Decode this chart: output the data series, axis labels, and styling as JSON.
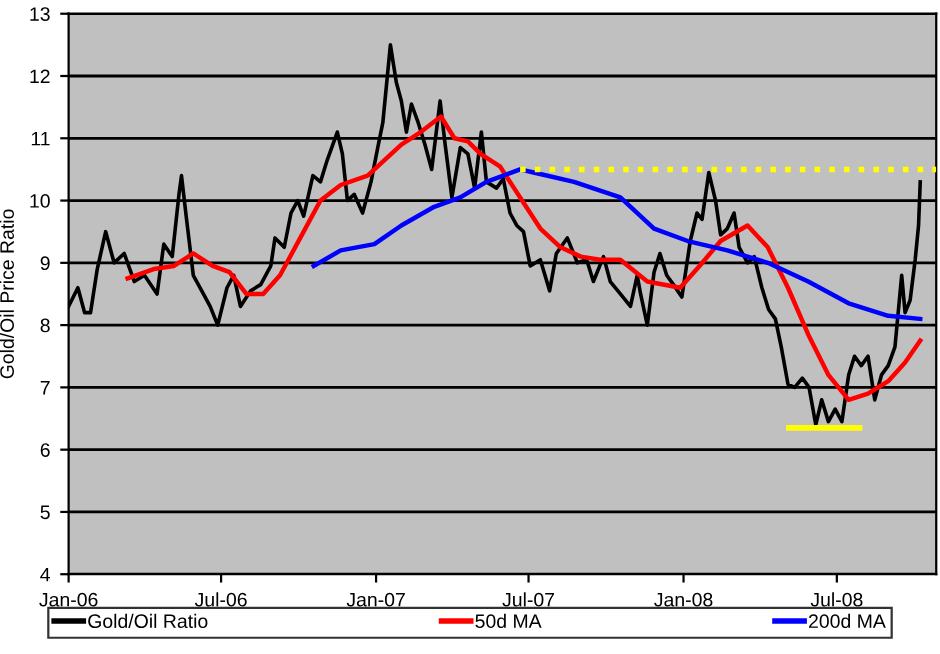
{
  "chart_data": {
    "type": "line",
    "ylabel": "Gold/Oil Price Ratio",
    "xlim": [
      "2006-01-01",
      "2008-10-27"
    ],
    "xticks": [
      {
        "value": "2006-01-01",
        "label": "Jan-06"
      },
      {
        "value": "2006-07-01",
        "label": "Jul-06"
      },
      {
        "value": "2007-01-01",
        "label": "Jan-07"
      },
      {
        "value": "2007-07-01",
        "label": "Jul-07"
      },
      {
        "value": "2008-01-01",
        "label": "Jan-08"
      },
      {
        "value": "2008-07-01",
        "label": "Jul-08"
      }
    ],
    "ylim": [
      4,
      13
    ],
    "yticks": [
      4,
      5,
      6,
      7,
      8,
      9,
      10,
      11,
      12,
      13
    ],
    "grid": "y",
    "legend": "bottom",
    "marker": "none",
    "line_style": "solid",
    "series": [
      {
        "name": "Gold/Oil Ratio",
        "color": "#000000",
        "x": [
          "2006-01-01",
          "2006-01-12",
          "2006-01-20",
          "2006-01-27",
          "2006-02-04",
          "2006-02-14",
          "2006-02-24",
          "2006-03-08",
          "2006-03-20",
          "2006-04-01",
          "2006-04-16",
          "2006-04-24",
          "2006-05-04",
          "2006-05-12",
          "2006-05-15",
          "2006-05-21",
          "2006-05-29",
          "2006-06-10",
          "2006-06-18",
          "2006-06-27",
          "2006-07-08",
          "2006-07-16",
          "2006-07-24",
          "2006-08-05",
          "2006-08-17",
          "2006-08-29",
          "2006-09-03",
          "2006-09-14",
          "2006-09-22",
          "2006-09-30",
          "2006-10-07",
          "2006-10-18",
          "2006-10-27",
          "2006-11-04",
          "2006-11-16",
          "2006-11-22",
          "2006-11-28",
          "2006-12-06",
          "2006-12-16",
          "2006-12-26",
          "2007-01-03",
          "2007-01-09",
          "2007-01-18",
          "2007-01-25",
          "2007-01-31",
          "2007-02-06",
          "2007-02-12",
          "2007-02-20",
          "2007-02-28",
          "2007-03-08",
          "2007-03-18",
          "2007-03-24",
          "2007-04-01",
          "2007-04-11",
          "2007-04-20",
          "2007-04-28",
          "2007-05-06",
          "2007-05-12",
          "2007-05-24",
          "2007-06-01",
          "2007-06-09",
          "2007-06-17",
          "2007-06-25",
          "2007-07-03",
          "2007-07-15",
          "2007-07-26",
          "2007-08-03",
          "2007-08-16",
          "2007-08-28",
          "2007-09-08",
          "2007-09-16",
          "2007-09-28",
          "2007-10-06",
          "2007-10-18",
          "2007-10-30",
          "2007-11-07",
          "2007-11-11",
          "2007-11-19",
          "2007-11-27",
          "2007-12-04",
          "2007-12-12",
          "2007-12-20",
          "2007-12-30",
          "2008-01-09",
          "2008-01-17",
          "2008-01-23",
          "2008-01-31",
          "2008-02-08",
          "2008-02-14",
          "2008-02-22",
          "2008-03-01",
          "2008-03-07",
          "2008-03-17",
          "2008-03-25",
          "2008-04-03",
          "2008-04-11",
          "2008-04-19",
          "2008-04-26",
          "2008-05-04",
          "2008-05-12",
          "2008-05-21",
          "2008-05-29",
          "2008-06-06",
          "2008-06-13",
          "2008-06-21",
          "2008-06-29",
          "2008-07-07",
          "2008-07-15",
          "2008-07-22",
          "2008-07-30",
          "2008-08-07",
          "2008-08-15",
          "2008-08-23",
          "2008-08-31",
          "2008-09-08",
          "2008-09-16",
          "2008-09-20",
          "2008-09-26",
          "2008-10-02",
          "2008-10-06",
          "2008-10-08"
        ],
        "values": [
          8.3,
          8.6,
          8.2,
          8.2,
          8.9,
          9.5,
          9.0,
          9.15,
          8.7,
          8.8,
          8.5,
          9.3,
          9.1,
          10.1,
          10.4,
          9.7,
          8.8,
          8.5,
          8.3,
          8.0,
          8.6,
          8.8,
          8.3,
          8.55,
          8.65,
          8.95,
          9.4,
          9.25,
          9.8,
          10.0,
          9.75,
          10.4,
          10.3,
          10.65,
          11.1,
          10.75,
          10.0,
          10.1,
          9.8,
          10.3,
          10.85,
          11.25,
          12.5,
          11.9,
          11.6,
          11.1,
          11.55,
          11.25,
          10.9,
          10.5,
          11.6,
          10.9,
          10.05,
          10.85,
          10.75,
          10.2,
          11.1,
          10.3,
          10.2,
          10.35,
          9.8,
          9.6,
          9.5,
          8.95,
          9.05,
          8.55,
          9.15,
          9.4,
          9.0,
          9.05,
          8.7,
          9.1,
          8.7,
          8.5,
          8.3,
          8.8,
          8.5,
          8.0,
          8.85,
          9.15,
          8.8,
          8.65,
          8.45,
          9.35,
          9.8,
          9.7,
          10.45,
          10.0,
          9.45,
          9.55,
          9.8,
          9.25,
          9.0,
          9.1,
          8.6,
          8.25,
          8.1,
          7.65,
          7.05,
          7.0,
          7.15,
          7.0,
          6.4,
          6.8,
          6.45,
          6.65,
          6.45,
          7.2,
          7.5,
          7.35,
          7.5,
          6.8,
          7.2,
          7.35,
          7.65,
          8.8,
          8.2,
          8.4,
          9.05,
          9.6,
          10.3
        ]
      },
      {
        "name": "50d MA",
        "color": "#ff0000",
        "x": [
          "2006-03-12",
          "2006-04-12",
          "2006-05-06",
          "2006-05-29",
          "2006-06-21",
          "2006-07-11",
          "2006-07-31",
          "2006-08-20",
          "2006-09-09",
          "2006-10-03",
          "2006-10-27",
          "2006-11-20",
          "2006-12-22",
          "2007-01-11",
          "2007-01-31",
          "2007-02-23",
          "2007-03-19",
          "2007-04-04",
          "2007-04-20",
          "2007-05-05",
          "2007-05-28",
          "2007-06-21",
          "2007-07-15",
          "2007-08-08",
          "2007-09-01",
          "2007-09-24",
          "2007-10-18",
          "2007-11-19",
          "2007-12-28",
          "2008-01-20",
          "2008-02-14",
          "2008-03-17",
          "2008-04-10",
          "2008-05-04",
          "2008-05-28",
          "2008-06-21",
          "2008-07-15",
          "2008-08-07",
          "2008-08-31",
          "2008-09-20",
          "2008-10-08"
        ],
        "values": [
          8.75,
          8.9,
          8.95,
          9.15,
          8.95,
          8.85,
          8.5,
          8.5,
          8.8,
          9.4,
          10.0,
          10.25,
          10.4,
          10.65,
          10.9,
          11.1,
          11.35,
          11.0,
          10.95,
          10.75,
          10.55,
          10.05,
          9.55,
          9.25,
          9.1,
          9.05,
          9.05,
          8.7,
          8.6,
          8.95,
          9.35,
          9.6,
          9.25,
          8.6,
          7.85,
          7.2,
          6.8,
          6.9,
          7.1,
          7.4,
          7.75
        ]
      },
      {
        "name": "200d MA",
        "color": "#0000ff",
        "x": [
          "2006-10-19",
          "2006-11-20",
          "2006-12-30",
          "2007-01-31",
          "2007-03-11",
          "2007-04-11",
          "2007-05-12",
          "2007-06-21",
          "2007-07-07",
          "2007-08-24",
          "2007-10-18",
          "2007-11-27",
          "2008-01-06",
          "2008-02-22",
          "2008-04-10",
          "2008-05-28",
          "2008-07-15",
          "2008-08-31",
          "2008-10-08"
        ],
        "values": [
          8.95,
          9.2,
          9.3,
          9.6,
          9.9,
          10.05,
          10.3,
          10.5,
          10.45,
          10.3,
          10.05,
          9.55,
          9.35,
          9.2,
          9.0,
          8.7,
          8.35,
          8.15,
          8.1
        ]
      },
      {
        "color": "#ffff00",
        "line_style": "dotted",
        "x": [
          "2007-06-21",
          "2008-10-27"
        ],
        "values": [
          10.5,
          10.5
        ]
      },
      {
        "color": "#ffff00",
        "line_style": "solid",
        "x": [
          "2008-05-05",
          "2008-07-28"
        ],
        "values": [
          6.35,
          6.35
        ]
      }
    ]
  }
}
